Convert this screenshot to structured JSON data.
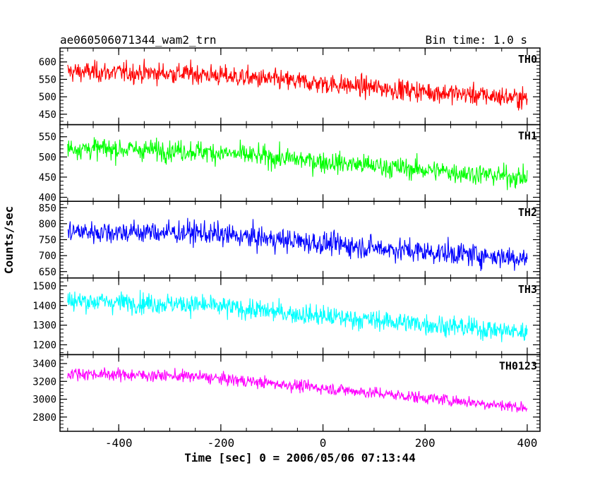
{
  "chart_data": {
    "type": "line",
    "title": "ae060506071344_wam2_trn",
    "subtitle": "Bin time: 1.0 s",
    "xlabel": "Time [sec] 0 = 2006/05/06 07:13:44",
    "ylabel": "Counts/sec",
    "xlim": [
      -515,
      425
    ],
    "xticks": [
      -400,
      -200,
      0,
      200,
      400
    ],
    "x_range": [
      -500,
      400
    ],
    "panels": [
      {
        "name": "TH0",
        "color": "#ff0000",
        "ylim": [
          420,
          640
        ],
        "yticks": [
          450,
          500,
          550,
          600
        ],
        "trend": {
          "x": [
            -500,
            -250,
            0,
            200,
            400
          ],
          "y": [
            572,
            566,
            538,
            515,
            495
          ]
        },
        "noise": 27
      },
      {
        "name": "TH1",
        "color": "#00ff00",
        "ylim": [
          390,
          580
        ],
        "yticks": [
          400,
          450,
          500,
          550
        ],
        "trend": {
          "x": [
            -500,
            -250,
            0,
            200,
            400
          ],
          "y": [
            522,
            515,
            488,
            468,
            448
          ]
        },
        "noise": 24
      },
      {
        "name": "TH2",
        "color": "#0000ff",
        "ylim": [
          630,
          870
        ],
        "yticks": [
          650,
          700,
          750,
          800,
          850
        ],
        "trend": {
          "x": [
            -500,
            -250,
            0,
            200,
            400
          ],
          "y": [
            775,
            772,
            738,
            712,
            692
          ]
        },
        "noise": 33
      },
      {
        "name": "TH3",
        "color": "#00ffff",
        "ylim": [
          1150,
          1540
        ],
        "yticks": [
          1200,
          1300,
          1400,
          1500
        ],
        "trend": {
          "x": [
            -500,
            -250,
            0,
            200,
            400
          ],
          "y": [
            1425,
            1405,
            1345,
            1305,
            1262
          ]
        },
        "noise": 48
      },
      {
        "name": "TH0123",
        "color": "#ff00ff",
        "ylim": [
          2640,
          3500
        ],
        "yticks": [
          2800,
          3000,
          3200,
          3400
        ],
        "trend": {
          "x": [
            -500,
            -250,
            0,
            200,
            400
          ],
          "y": [
            3290,
            3255,
            3125,
            3015,
            2905
          ]
        },
        "noise": 62
      }
    ]
  }
}
